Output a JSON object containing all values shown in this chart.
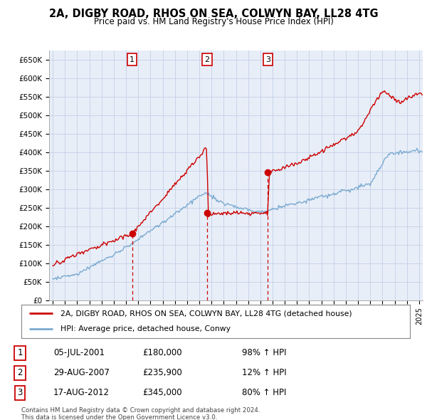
{
  "title": "2A, DIGBY ROAD, RHOS ON SEA, COLWYN BAY, LL28 4TG",
  "subtitle": "Price paid vs. HM Land Registry's House Price Index (HPI)",
  "ylim": [
    0,
    675000
  ],
  "xlim_start": 1994.7,
  "xlim_end": 2025.3,
  "sales": [
    {
      "date_str": "05-JUL-2001",
      "date_num": 2001.5,
      "price": 180000,
      "label": "1"
    },
    {
      "date_str": "29-AUG-2007",
      "date_num": 2007.65,
      "price": 235900,
      "label": "2"
    },
    {
      "date_str": "17-AUG-2012",
      "date_num": 2012.62,
      "price": 345000,
      "label": "3"
    }
  ],
  "legend_line1": "2A, DIGBY ROAD, RHOS ON SEA, COLWYN BAY, LL28 4TG (detached house)",
  "legend_line2": "HPI: Average price, detached house, Conwy",
  "footer1": "Contains HM Land Registry data © Crown copyright and database right 2024.",
  "footer2": "This data is licensed under the Open Government Licence v3.0.",
  "table_rows": [
    {
      "num": "1",
      "date": "05-JUL-2001",
      "price": "£180,000",
      "pct": "98% ↑ HPI"
    },
    {
      "num": "2",
      "date": "29-AUG-2007",
      "price": "£235,900",
      "pct": "12% ↑ HPI"
    },
    {
      "num": "3",
      "date": "17-AUG-2012",
      "price": "£345,000",
      "pct": "80% ↑ HPI"
    }
  ],
  "red_color": "#cc0000",
  "blue_color": "#7aaad0",
  "chart_bg": "#e8eef8",
  "grid_color": "#c8d4e8",
  "box_bg": "#ffffff"
}
